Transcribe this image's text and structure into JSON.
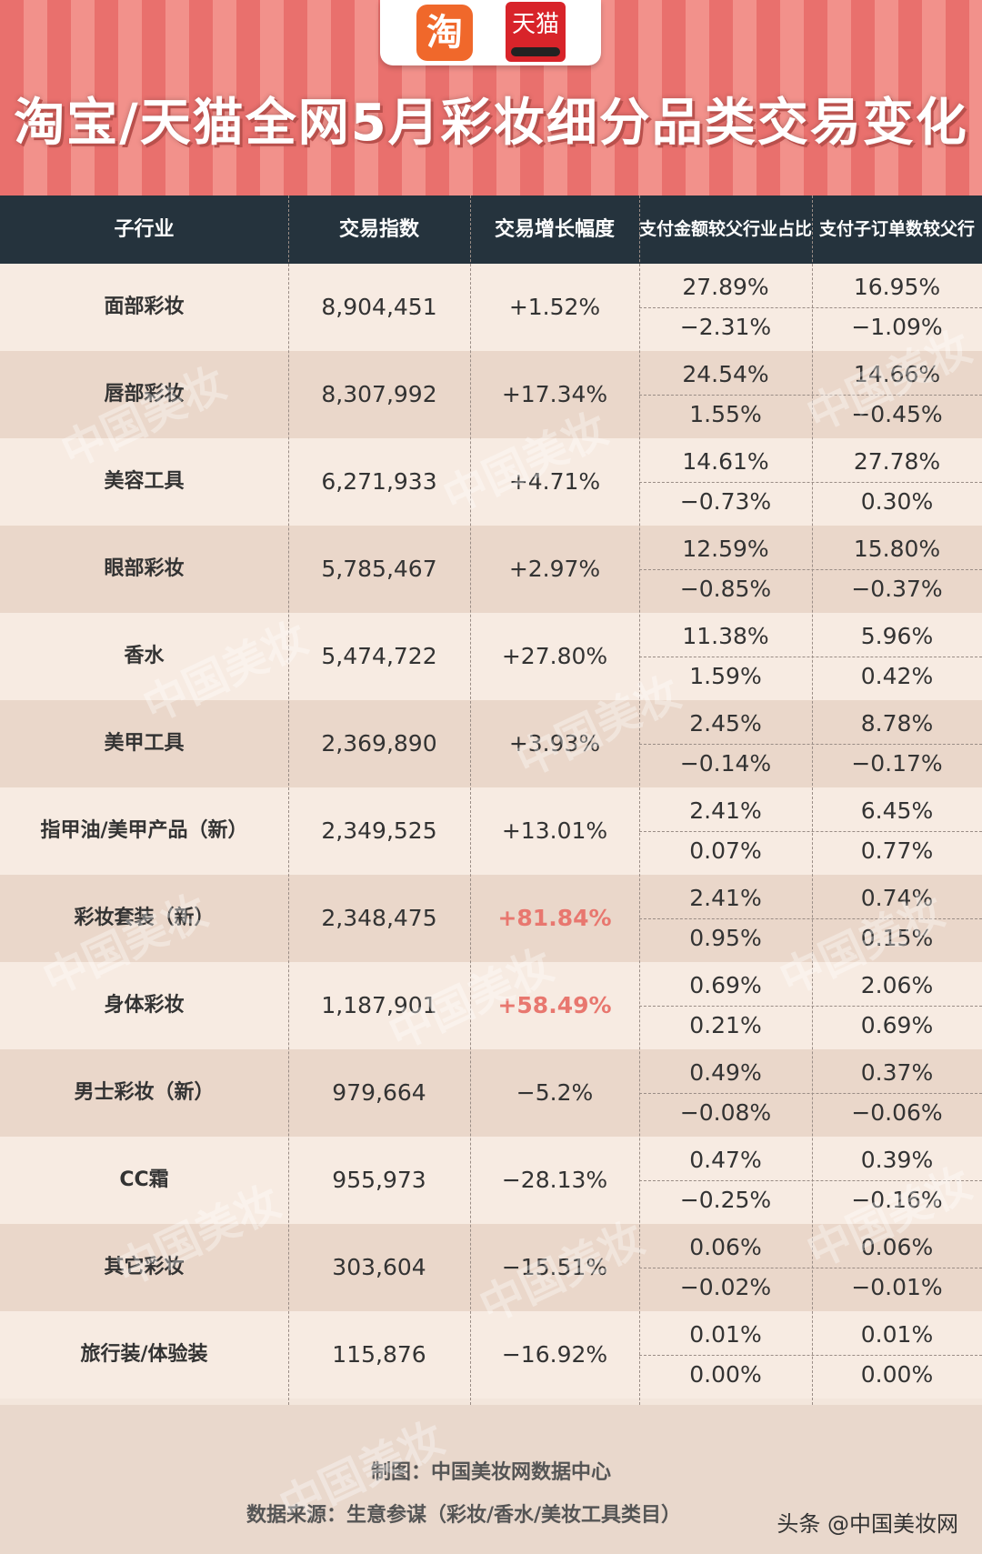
{
  "header": {
    "title": "淘宝/天猫全网5月彩妆细分品类交易变化",
    "logo_taobao": "淘",
    "logo_tmall": "天猫"
  },
  "chart_data": {
    "type": "table",
    "columns": [
      "子行业",
      "交易指数",
      "交易增长幅度",
      "支付金额较父行业占比",
      "支付子订单数较父行业占比"
    ],
    "rows": [
      {
        "name": "面部彩妆",
        "index": "8,904,451",
        "growth": "+1.52%",
        "pay_share": "27.89%",
        "pay_change": "−2.31%",
        "order_share": "16.95%",
        "order_change": "−1.09%",
        "highlight": false
      },
      {
        "name": "唇部彩妆",
        "index": "8,307,992",
        "growth": "+17.34%",
        "pay_share": "24.54%",
        "pay_change": "1.55%",
        "order_share": "14.66%",
        "order_change": "−0.45%",
        "highlight": false
      },
      {
        "name": "美容工具",
        "index": "6,271,933",
        "growth": "+4.71%",
        "pay_share": "14.61%",
        "pay_change": "−0.73%",
        "order_share": "27.78%",
        "order_change": "0.30%",
        "highlight": false
      },
      {
        "name": "眼部彩妆",
        "index": "5,785,467",
        "growth": "+2.97%",
        "pay_share": "12.59%",
        "pay_change": "−0.85%",
        "order_share": "15.80%",
        "order_change": "−0.37%",
        "highlight": false
      },
      {
        "name": "香水",
        "index": "5,474,722",
        "growth": "+27.80%",
        "pay_share": "11.38%",
        "pay_change": "1.59%",
        "order_share": "5.96%",
        "order_change": "0.42%",
        "highlight": false
      },
      {
        "name": "美甲工具",
        "index": "2,369,890",
        "growth": "+3.93%",
        "pay_share": "2.45%",
        "pay_change": "−0.14%",
        "order_share": "8.78%",
        "order_change": "−0.17%",
        "highlight": false
      },
      {
        "name": "指甲油/美甲产品（新）",
        "index": "2,349,525",
        "growth": "+13.01%",
        "pay_share": "2.41%",
        "pay_change": "0.07%",
        "order_share": "6.45%",
        "order_change": "0.77%",
        "highlight": false
      },
      {
        "name": "彩妆套装（新）",
        "index": "2,348,475",
        "growth": "+81.84%",
        "pay_share": "2.41%",
        "pay_change": "0.95%",
        "order_share": "0.74%",
        "order_change": "0.15%",
        "highlight": true
      },
      {
        "name": "身体彩妆",
        "index": "1,187,901",
        "growth": "+58.49%",
        "pay_share": "0.69%",
        "pay_change": "0.21%",
        "order_share": "2.06%",
        "order_change": "0.69%",
        "highlight": true
      },
      {
        "name": "男士彩妆（新）",
        "index": "979,664",
        "growth": "−5.2%",
        "pay_share": "0.49%",
        "pay_change": "−0.08%",
        "order_share": "0.37%",
        "order_change": "−0.06%",
        "highlight": false
      },
      {
        "name": "CC霜",
        "index": "955,973",
        "growth": "−28.13%",
        "pay_share": "0.47%",
        "pay_change": "−0.25%",
        "order_share": "0.39%",
        "order_change": "−0.16%",
        "highlight": false
      },
      {
        "name": "其它彩妆",
        "index": "303,604",
        "growth": "−15.51%",
        "pay_share": "0.06%",
        "pay_change": "−0.02%",
        "order_share": "0.06%",
        "order_change": "−0.01%",
        "highlight": false
      },
      {
        "name": "旅行装/体验装",
        "index": "115,876",
        "growth": "−16.92%",
        "pay_share": "0.01%",
        "pay_change": "0.00%",
        "order_share": "0.01%",
        "order_change": "0.00%",
        "highlight": false
      }
    ],
    "highlight_color": "#e8776f"
  },
  "footer": {
    "credit": "制图：中国美妆网数据中心",
    "source": "数据来源：生意参谋（彩妆/香水/美妆工具类目）",
    "brand": "头条 @中国美妆网"
  },
  "watermark": "中国美妆"
}
